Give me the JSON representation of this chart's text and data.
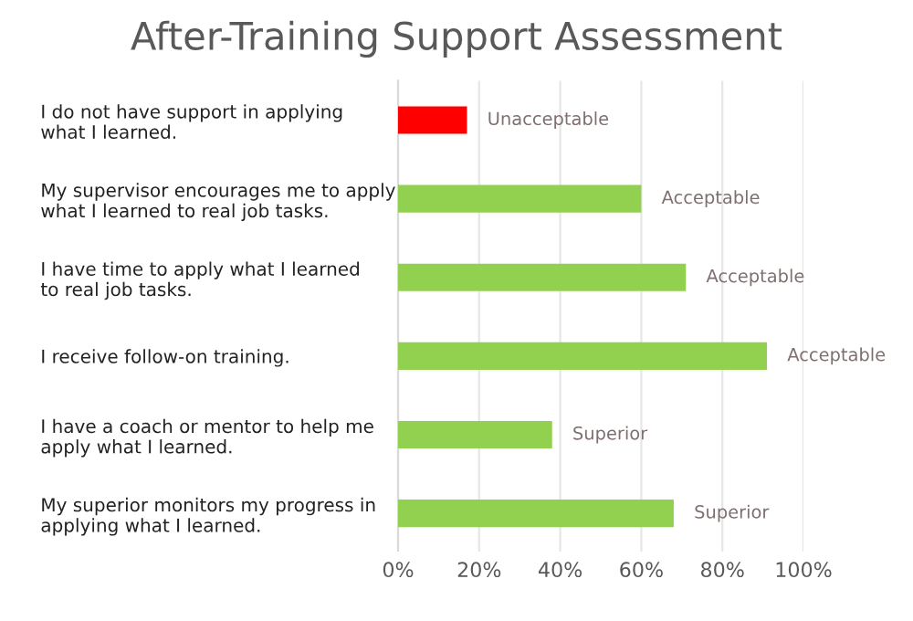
{
  "chart_data": {
    "type": "bar",
    "orientation": "horizontal",
    "title": "After-Training Support Assessment",
    "categories": [
      "I do not have support in applying\nwhat I learned.",
      "My supervisor encourages me to apply\nwhat I learned to real job tasks.",
      "I have time to apply what I learned\nto real job tasks.",
      "I receive follow-on training.",
      "I have a coach or mentor to help me\napply what I learned.",
      "My superior monitors my progress in\napplying what I learned."
    ],
    "values": [
      17,
      60,
      71,
      91,
      38,
      68
    ],
    "colors": [
      "#ff0000",
      "#92d050",
      "#92d050",
      "#92d050",
      "#92d050",
      "#92d050"
    ],
    "value_labels": [
      "Unacceptable",
      "Acceptable",
      "Acceptable",
      "Acceptable",
      "Superior",
      "Superior"
    ],
    "xlim": [
      0,
      100
    ],
    "xticks": [
      {
        "value": 0,
        "label": "0%"
      },
      {
        "value": 20,
        "label": "20%"
      },
      {
        "value": 40,
        "label": "40%"
      },
      {
        "value": 60,
        "label": "60%"
      },
      {
        "value": 80,
        "label": "80%"
      },
      {
        "value": 100,
        "label": "100%"
      }
    ],
    "grid": "x",
    "legend": false
  }
}
